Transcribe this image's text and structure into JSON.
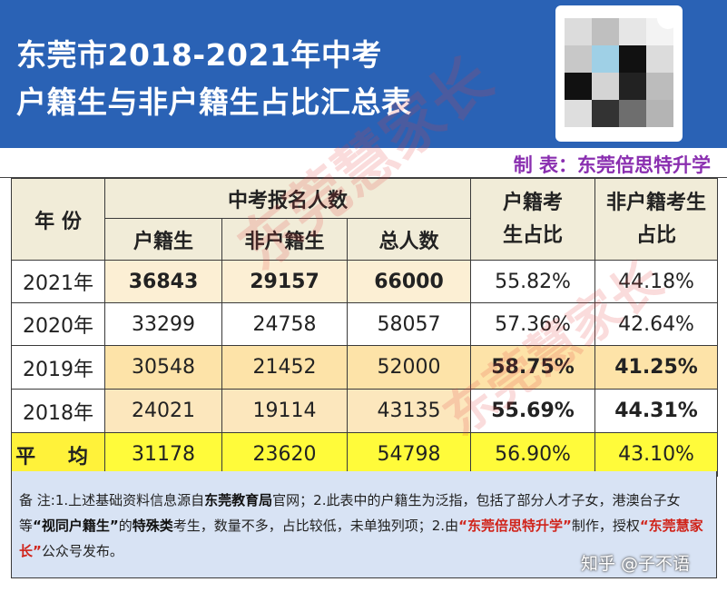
{
  "header": {
    "title_line1": "东莞市2018-2021年中考",
    "title_line2": "户籍生与非户籍生占比汇总表"
  },
  "maker": "制 表：东莞倍思特升学",
  "table": {
    "col_year": "年 份",
    "col_group": "中考报名人数",
    "col_huji": "户籍生",
    "col_feihuji": "非户籍生",
    "col_total": "总人数",
    "col_huji_ratio": "户籍考生占比",
    "col_feihuji_ratio": "非户籍考生占比",
    "rows": [
      {
        "year": "2021年",
        "huji": "36843",
        "feihuji": "29157",
        "total": "66000",
        "huji_ratio": "55.82%",
        "feihuji_ratio": "44.18%"
      },
      {
        "year": "2020年",
        "huji": "33299",
        "feihuji": "24758",
        "total": "58057",
        "huji_ratio": "57.36%",
        "feihuji_ratio": "42.64%"
      },
      {
        "year": "2019年",
        "huji": "30548",
        "feihuji": "21452",
        "total": "52000",
        "huji_ratio": "58.75%",
        "feihuji_ratio": "41.25%"
      },
      {
        "year": "2018年",
        "huji": "24021",
        "feihuji": "19114",
        "total": "43135",
        "huji_ratio": "55.69%",
        "feihuji_ratio": "44.31%"
      },
      {
        "year": "平 均",
        "huji": "31178",
        "feihuji": "23620",
        "total": "54798",
        "huji_ratio": "56.90%",
        "feihuji_ratio": "43.10%"
      }
    ]
  },
  "notes": {
    "p1": "备 注:1.上述基础资料信息源自",
    "b1": "东莞教育局",
    "p2": "官网；2.此表中的户籍生为泛指，包括了部分人才子女，港澳台子女等",
    "b2": "“视同户籍生”",
    "p3": "的",
    "b3": "特殊类",
    "p4": "考生，数量不多，占比较低，未单独列项；2.由",
    "r1": "“东莞倍思特升学”",
    "p5": "制作，授权",
    "r2": "“东莞慧家长”",
    "p6": "公众号发布。"
  },
  "watermark": "东莞慧家长",
  "zhihu_mark": "知乎 @子不语",
  "colors": {
    "header_bg": "#2a62b5",
    "maker_text": "#8a2fb0",
    "highlight_red": "#e0231f",
    "avg_row": "#fffb3a",
    "notes_bg": "#d8e3f4"
  }
}
